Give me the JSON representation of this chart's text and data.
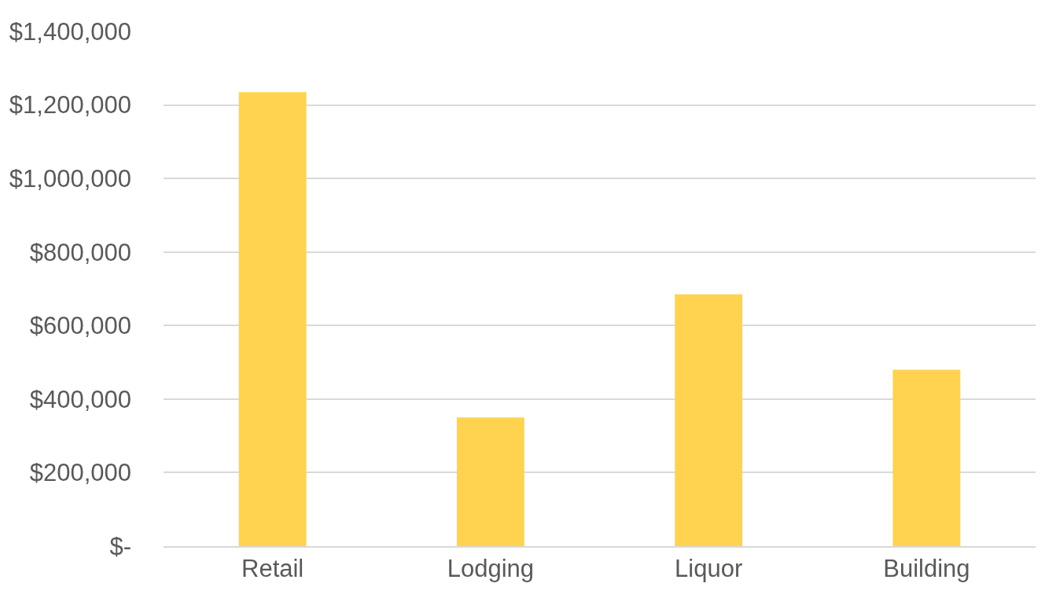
{
  "chart_data": {
    "type": "bar",
    "categories": [
      "Retail",
      "Lodging",
      "Liquor",
      "Building"
    ],
    "values": [
      1235000,
      350000,
      685000,
      480000
    ],
    "color": "#ffd34f",
    "ylim": [
      0,
      1400000
    ],
    "yticks": [
      {
        "value": 0,
        "label": "$-"
      },
      {
        "value": 200000,
        "label": "$200,000"
      },
      {
        "value": 400000,
        "label": "$400,000"
      },
      {
        "value": 600000,
        "label": "$600,000"
      },
      {
        "value": 800000,
        "label": "$800,000"
      },
      {
        "value": 1000000,
        "label": "$1,000,000"
      },
      {
        "value": 1200000,
        "label": "$1,200,000"
      },
      {
        "value": 1400000,
        "label": "$1,400,000"
      }
    ],
    "grid": "y",
    "legend": false
  }
}
